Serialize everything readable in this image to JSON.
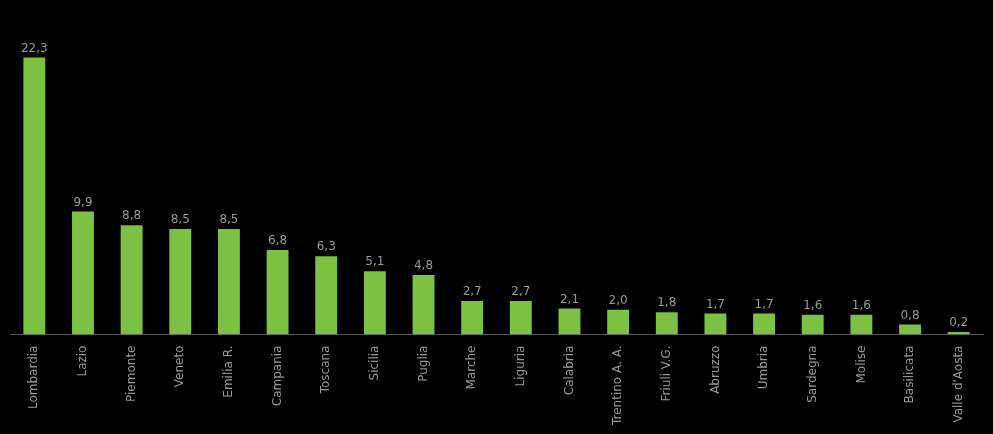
{
  "chart_data": {
    "type": "bar",
    "categories": [
      "Lombardia",
      "Lazio",
      "Piemonte",
      "Veneto",
      "Emilia R.",
      "Campania",
      "Toscana",
      "Sicilia",
      "Puglia",
      "Marche",
      "Liguria",
      "Calabria",
      "Trentino A. A.",
      "Friuli V.G.",
      "Abruzzo",
      "Umbria",
      "Sardegna",
      "Molise",
      "Basilicata",
      "Valle d'Aosta"
    ],
    "values": [
      22.3,
      9.9,
      8.8,
      8.5,
      8.5,
      6.8,
      6.3,
      5.1,
      4.8,
      2.7,
      2.7,
      2.1,
      2.0,
      1.8,
      1.7,
      1.7,
      1.6,
      1.6,
      0.8,
      0.2
    ],
    "value_labels": [
      "22,3",
      "9,9",
      "8,8",
      "8,5",
      "8,5",
      "6,8",
      "6,3",
      "5,1",
      "4,8",
      "2,7",
      "2,7",
      "2,1",
      "2,0",
      "1,8",
      "1,7",
      "1,7",
      "1,6",
      "1,6",
      "0,8",
      "0,2"
    ],
    "color": "#7dc142",
    "ylim": [
      0,
      25
    ],
    "data_labels": true,
    "tick_labels": "x",
    "grid": false
  }
}
